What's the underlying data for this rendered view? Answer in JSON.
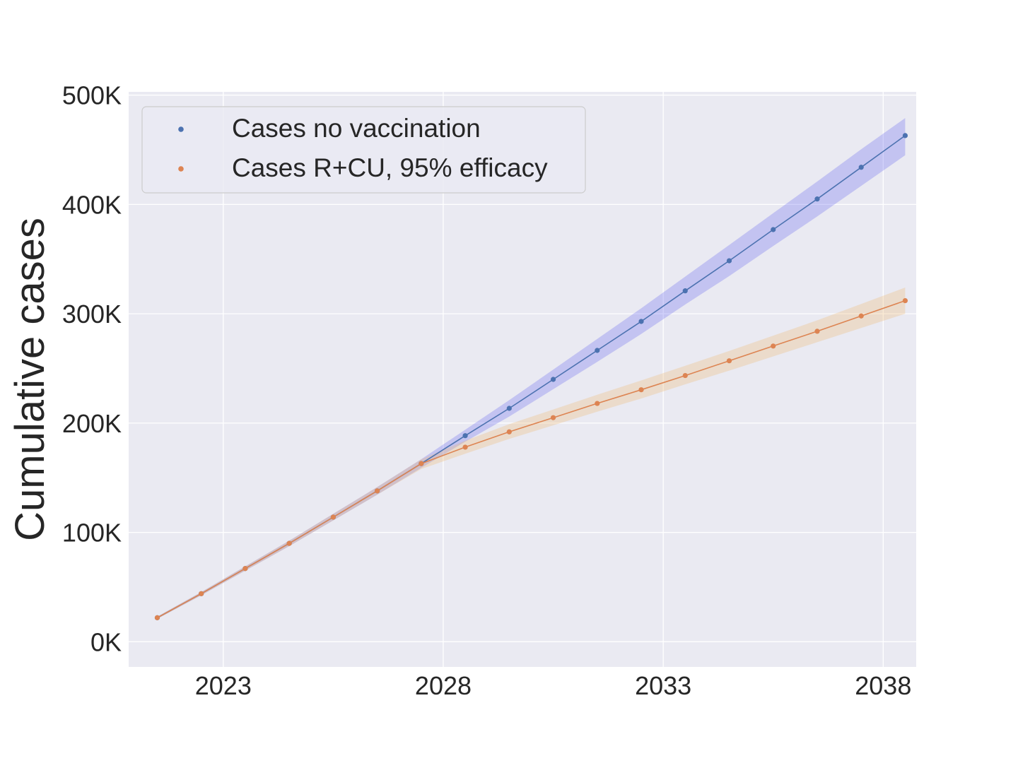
{
  "chart_data": {
    "type": "line",
    "xlabel": "",
    "ylabel": "Cumulative cases",
    "xlim": [
      2020.85,
      2038.75
    ],
    "ylim": [
      -23000,
      503000
    ],
    "x_ticks": [
      2023,
      2028,
      2033,
      2038
    ],
    "x_tick_labels": [
      "2023",
      "2028",
      "2033",
      "2038"
    ],
    "y_ticks": [
      0,
      100000,
      200000,
      300000,
      400000,
      500000
    ],
    "y_tick_labels": [
      "0K",
      "100K",
      "200K",
      "300K",
      "400K",
      "500K"
    ],
    "grid": true,
    "legend_position": "top-left",
    "x": [
      2021.5,
      2022.5,
      2023.5,
      2024.5,
      2025.5,
      2026.5,
      2027.5,
      2028.5,
      2029.5,
      2030.5,
      2031.5,
      2032.5,
      2033.5,
      2034.5,
      2035.5,
      2036.5,
      2037.5,
      2038.5
    ],
    "series": [
      {
        "name": "Cases no vaccination",
        "color": "#4c72b0",
        "band_color": "#6b6bf0",
        "values": [
          22000,
          44000,
          67000,
          90000,
          114000,
          138000,
          163000,
          188500,
          213500,
          240000,
          266500,
          293000,
          321000,
          348500,
          377000,
          405000,
          434000,
          463000
        ],
        "lower": [
          21000,
          42500,
          65000,
          87500,
          111000,
          134500,
          159000,
          183000,
          206000,
          231000,
          256000,
          281500,
          308500,
          334500,
          362000,
          389000,
          417000,
          445000
        ],
        "upper": [
          23000,
          45500,
          69000,
          92500,
          117000,
          141500,
          167000,
          194000,
          221000,
          249000,
          277000,
          305000,
          334000,
          363000,
          392000,
          421000,
          450500,
          479000
        ]
      },
      {
        "name": "Cases R+CU, 95% efficacy",
        "color": "#dd8452",
        "band_color": "#f0b870",
        "values": [
          22000,
          44000,
          67000,
          90000,
          114000,
          138000,
          163000,
          178000,
          192000,
          205000,
          218000,
          230500,
          243500,
          257000,
          270500,
          284000,
          298000,
          312000
        ],
        "lower": [
          21000,
          42500,
          65000,
          87500,
          111000,
          134500,
          158000,
          172000,
          185500,
          198000,
          210500,
          222500,
          235500,
          248000,
          261000,
          274000,
          287000,
          300000
        ],
        "upper": [
          23000,
          45500,
          69000,
          92500,
          117000,
          141500,
          167000,
          184000,
          199000,
          212500,
          226000,
          239000,
          252500,
          266000,
          280000,
          294000,
          309000,
          324000
        ]
      }
    ]
  }
}
